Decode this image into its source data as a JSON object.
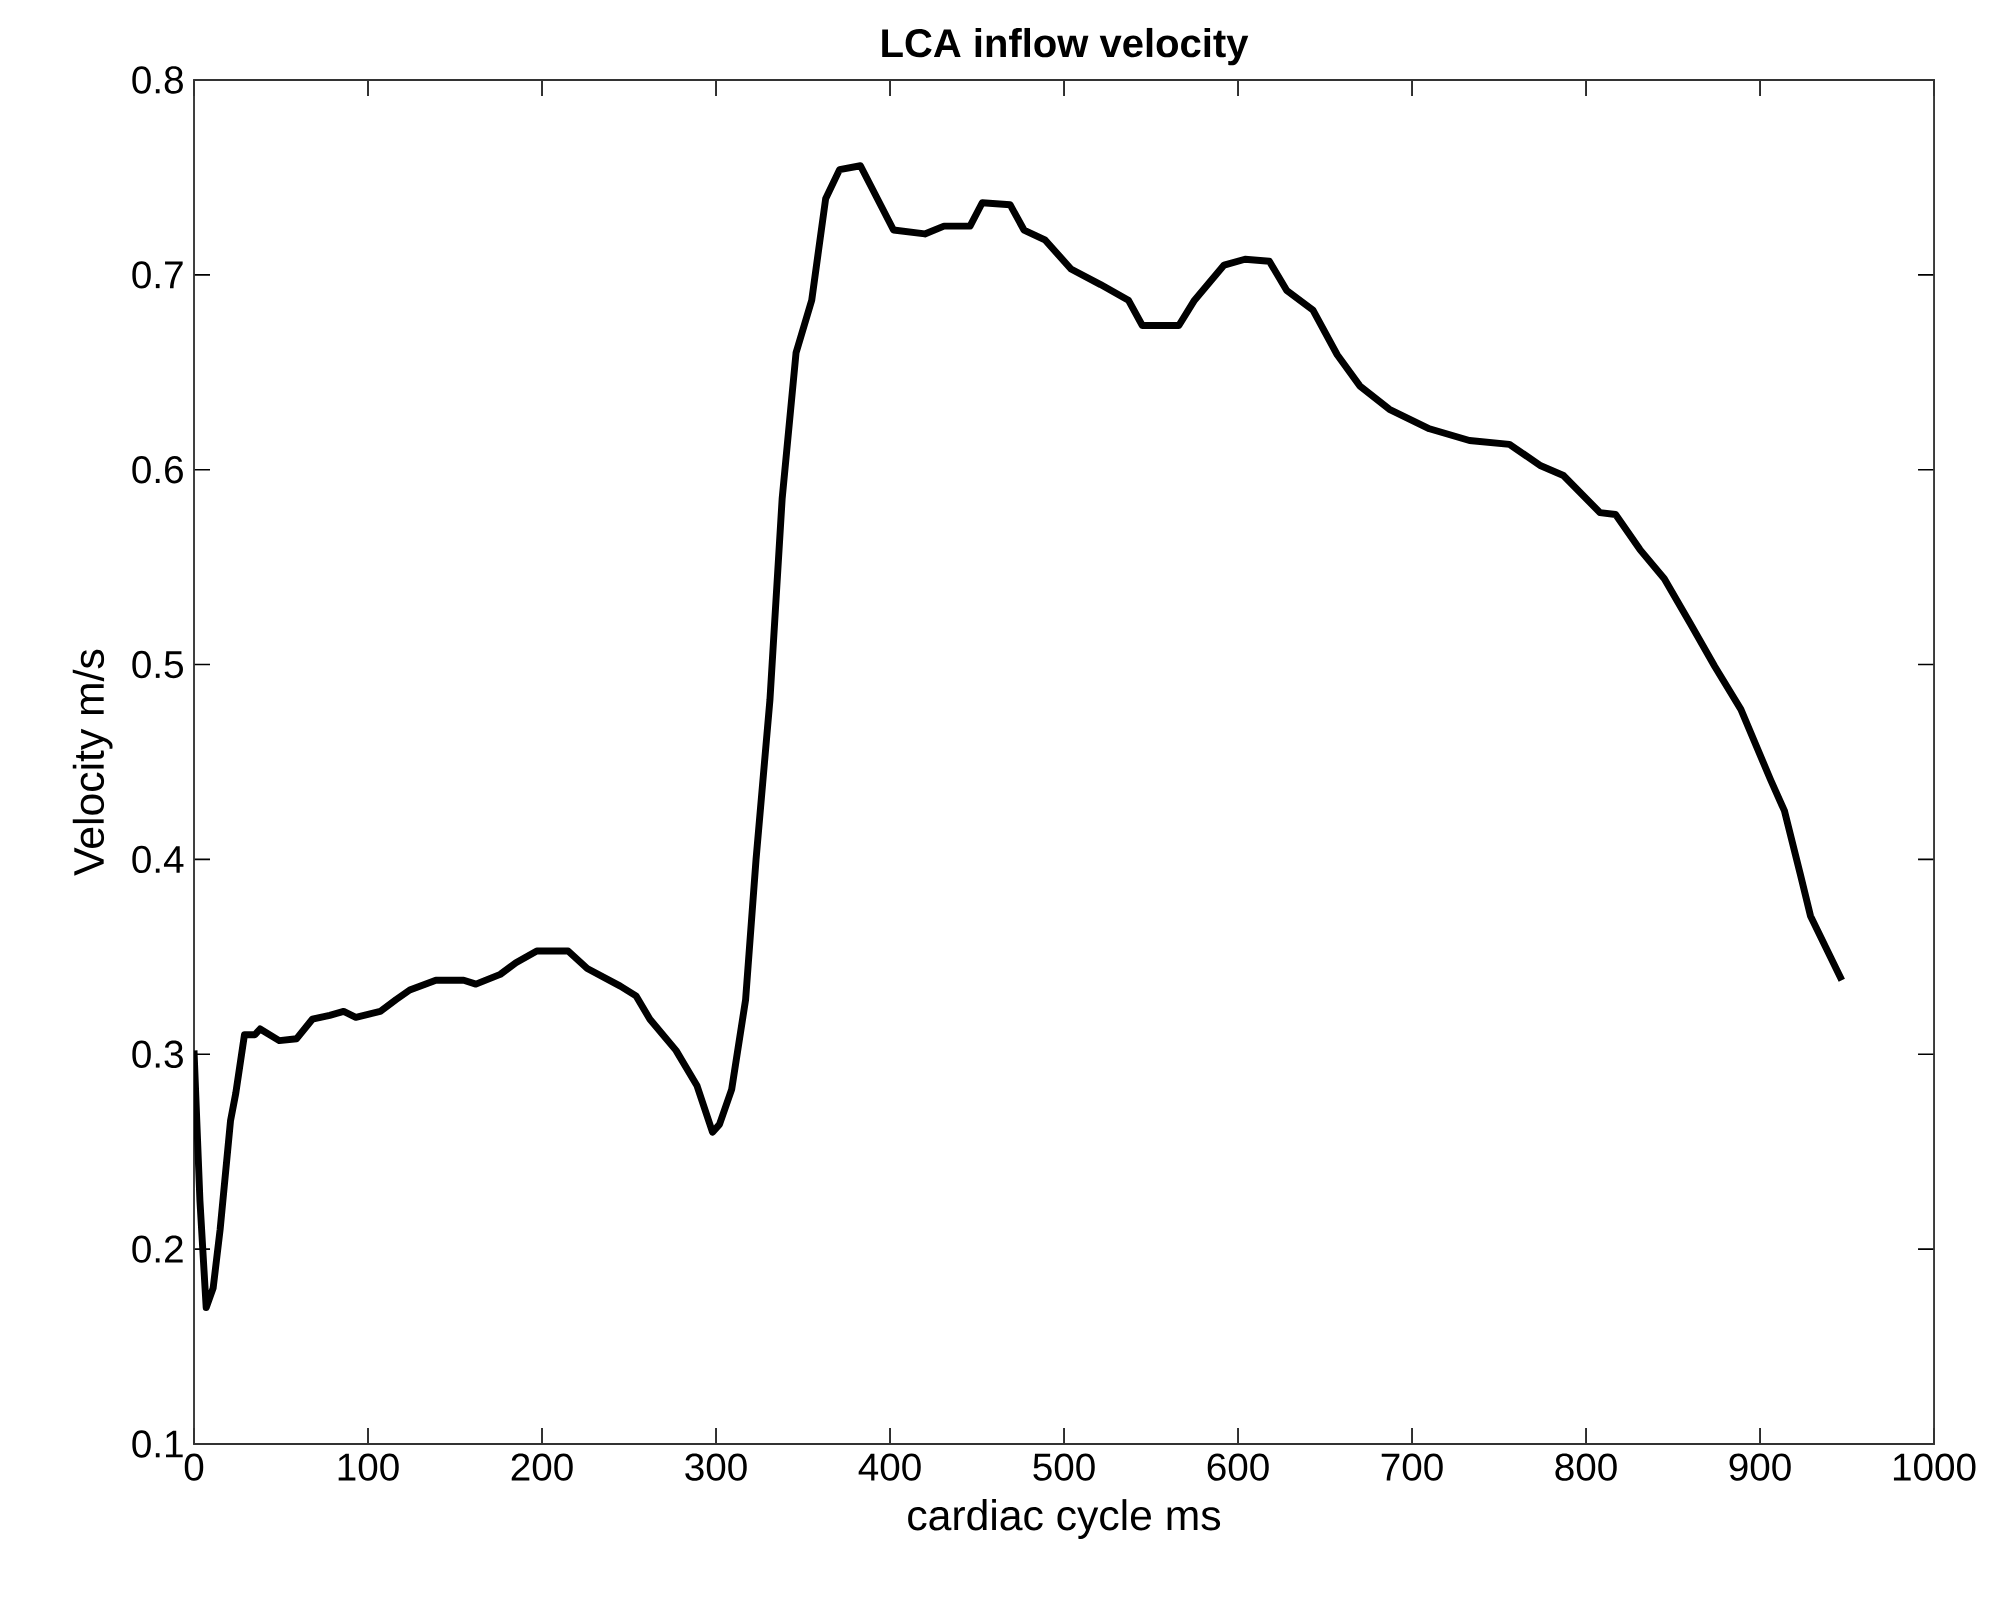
{
  "chart_data": {
    "type": "line",
    "title": "**LCA inflow velocity**",
    "xlabel": "cardiac cycle ms",
    "ylabel": "Velocity m/s",
    "x": [
      0,
      3.4,
      7,
      11,
      15,
      21,
      24,
      29,
      35,
      38,
      49,
      59,
      68,
      78,
      86,
      93,
      107,
      116,
      124,
      139,
      155,
      162,
      176,
      185,
      197,
      215,
      226,
      245,
      254,
      262,
      277,
      289,
      298,
      302,
      309,
      317,
      323,
      331,
      338,
      346,
      355,
      363,
      371,
      383,
      402,
      420,
      431,
      446,
      453,
      469,
      477,
      489,
      504,
      521,
      537,
      545,
      566,
      575,
      592,
      604,
      618,
      628,
      643,
      657,
      670,
      687,
      710,
      733,
      756,
      774,
      787,
      808,
      817,
      831,
      845,
      860,
      874,
      889,
      906,
      914,
      923,
      929,
      947
    ],
    "series": [
      {
        "color": "#000000",
        "values": [
          0.302,
          0.225,
          0.17,
          0.18,
          0.21,
          0.266,
          0.28,
          0.31,
          0.31,
          0.313,
          0.307,
          0.308,
          0.318,
          0.32,
          0.322,
          0.319,
          0.322,
          0.328,
          0.333,
          0.338,
          0.338,
          0.336,
          0.341,
          0.347,
          0.353,
          0.353,
          0.344,
          0.335,
          0.33,
          0.318,
          0.302,
          0.284,
          0.26,
          0.264,
          0.282,
          0.328,
          0.4,
          0.482,
          0.585,
          0.66,
          0.687,
          0.739,
          0.754,
          0.756,
          0.723,
          0.721,
          0.725,
          0.725,
          0.737,
          0.736,
          0.723,
          0.718,
          0.703,
          0.695,
          0.687,
          0.674,
          0.674,
          0.687,
          0.705,
          0.708,
          0.707,
          0.692,
          0.682,
          0.659,
          0.643,
          0.631,
          0.621,
          0.615,
          0.613,
          0.602,
          0.597,
          0.578,
          0.577,
          0.559,
          0.544,
          0.521,
          0.499,
          0.477,
          0.441,
          0.425,
          0.393,
          0.371,
          0.338
        ]
      }
    ],
    "xlim": [
      0,
      1000
    ],
    "ylim": [
      0.1,
      0.8
    ],
    "xticks": [
      0,
      100,
      200,
      300,
      400,
      500,
      600,
      700,
      800,
      900,
      1000
    ],
    "yticks": [
      0.1,
      0.2,
      0.3,
      0.4,
      0.5,
      0.6,
      0.7,
      0.8
    ],
    "grid": false,
    "marker": "none",
    "line_style": "solid"
  }
}
